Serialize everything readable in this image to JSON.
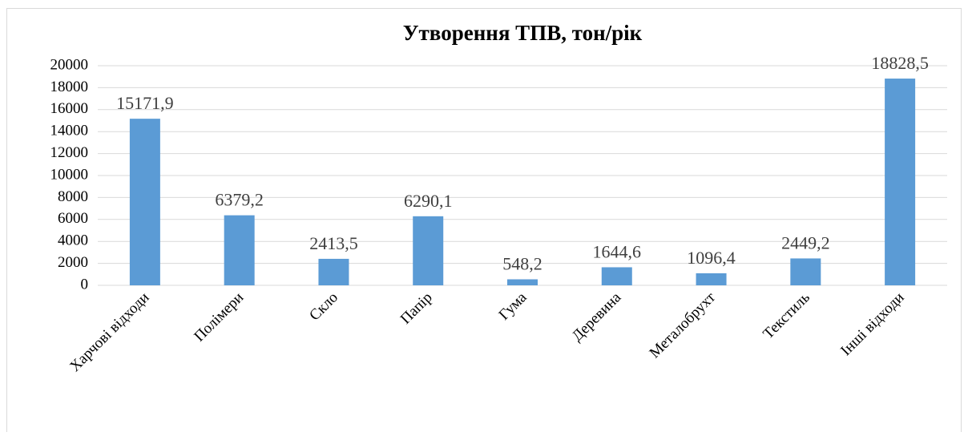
{
  "chart_data": {
    "type": "bar",
    "title": "Утворення ТПВ, тон/рік",
    "categories": [
      "Харчові відходи",
      "Полімери",
      "Скло",
      "Папір",
      "Гума",
      "Деревина",
      "Металобрухт",
      "Текстиль",
      "Інші відходи"
    ],
    "values": [
      15171.9,
      6379.2,
      2413.5,
      6290.1,
      548.2,
      1644.6,
      1096.4,
      2449.2,
      18828.5
    ],
    "value_labels": [
      "15171,9",
      "6379,2",
      "2413,5",
      "6290,1",
      "548,2",
      "1644,6",
      "1096,4",
      "2449,2",
      "18828,5"
    ],
    "color": "#5b9bd5",
    "ylim": [
      0,
      20000
    ],
    "yticks": [
      0,
      2000,
      4000,
      6000,
      8000,
      10000,
      12000,
      14000,
      16000,
      18000,
      20000
    ],
    "grid": true
  }
}
